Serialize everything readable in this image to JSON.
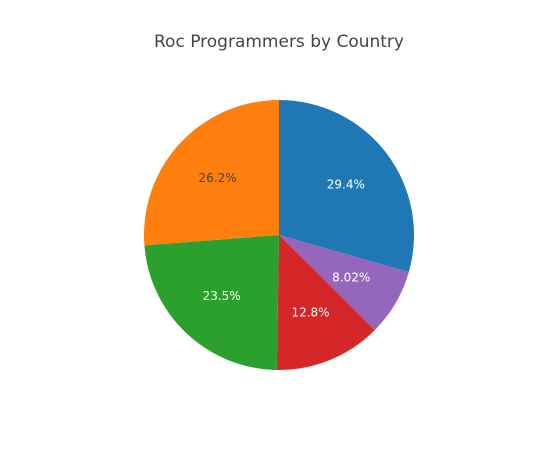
{
  "chart_data": {
    "type": "pie",
    "title": "Roc Programmers by Country",
    "slices": [
      {
        "label": "29.4%",
        "value": 29.4,
        "color": "#1f77b4",
        "text_color": "#ffffff"
      },
      {
        "label": "8.02%",
        "value": 8.02,
        "color": "#9467bd",
        "text_color": "#ffffff"
      },
      {
        "label": "12.8%",
        "value": 12.8,
        "color": "#d62728",
        "text_color": "#ffffff"
      },
      {
        "label": "23.5%",
        "value": 23.5,
        "color": "#2ca02c",
        "text_color": "#ffffff"
      },
      {
        "label": "26.2%",
        "value": 26.2,
        "color": "#ff7f0e",
        "text_color": "#444444"
      }
    ],
    "legend": "none"
  }
}
